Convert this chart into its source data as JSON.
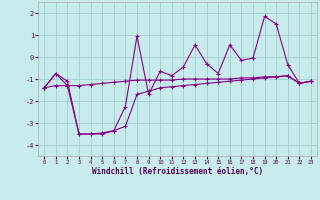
{
  "xlabel": "Windchill (Refroidissement éolien,°C)",
  "xlim": [
    -0.5,
    23.5
  ],
  "ylim": [
    -4.5,
    2.5
  ],
  "yticks": [
    -4,
    -3,
    -2,
    -1,
    0,
    1,
    2
  ],
  "xticks": [
    0,
    1,
    2,
    3,
    4,
    5,
    6,
    7,
    8,
    9,
    10,
    11,
    12,
    13,
    14,
    15,
    16,
    17,
    18,
    19,
    20,
    21,
    22,
    23
  ],
  "bg_color": "#c8ecec",
  "grid_color": "#9fcfcf",
  "line_color": "#880088",
  "line1_x": [
    0,
    1,
    2,
    3,
    4,
    5,
    6,
    7,
    8,
    9,
    10,
    11,
    12,
    13,
    14,
    15,
    16,
    17,
    18,
    19,
    20,
    21,
    22,
    23
  ],
  "line1_y": [
    -1.4,
    -0.75,
    -1.3,
    -1.3,
    -1.25,
    -1.2,
    -1.15,
    -1.1,
    -1.05,
    -1.05,
    -1.05,
    -1.05,
    -1.0,
    -1.0,
    -1.0,
    -1.0,
    -1.0,
    -0.95,
    -0.95,
    -0.9,
    -0.9,
    -0.85,
    -1.2,
    -1.1
  ],
  "line2_x": [
    0,
    1,
    2,
    3,
    4,
    5,
    6,
    7,
    8,
    9,
    10,
    11,
    12,
    13,
    14,
    15,
    16,
    17,
    18,
    19,
    20,
    21,
    22,
    23
  ],
  "line2_y": [
    -1.4,
    -0.75,
    -1.1,
    -3.5,
    -3.5,
    -3.5,
    -3.35,
    -2.25,
    0.95,
    -1.7,
    -0.65,
    -0.85,
    -0.45,
    0.55,
    -0.3,
    -0.75,
    0.55,
    -0.15,
    -0.05,
    1.85,
    1.5,
    -0.35,
    -1.2,
    -1.1
  ],
  "line3_x": [
    0,
    1,
    2,
    3,
    4,
    5,
    6,
    7,
    8,
    9,
    10,
    11,
    12,
    13,
    14,
    15,
    16,
    17,
    18,
    19,
    20,
    21,
    22,
    23
  ],
  "line3_y": [
    -1.4,
    -1.3,
    -1.3,
    -3.5,
    -3.5,
    -3.45,
    -3.35,
    -3.15,
    -1.7,
    -1.55,
    -1.4,
    -1.35,
    -1.3,
    -1.25,
    -1.2,
    -1.15,
    -1.1,
    -1.05,
    -1.0,
    -0.95,
    -0.9,
    -0.85,
    -1.2,
    -1.1
  ]
}
